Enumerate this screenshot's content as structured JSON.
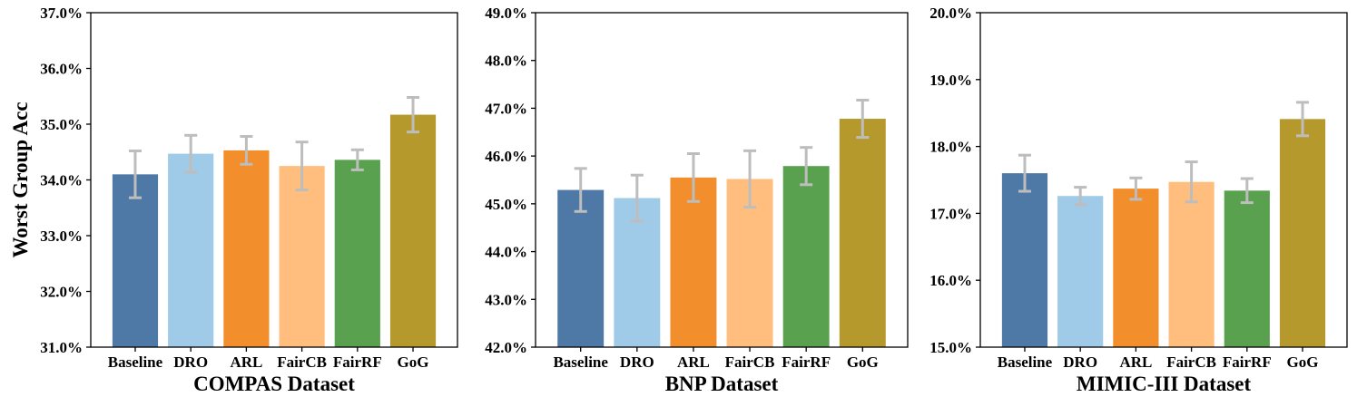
{
  "chart_data": [
    {
      "type": "bar",
      "title": "",
      "xlabel": "COMPAS Dataset",
      "ylabel": "Worst Group Acc",
      "ylim": [
        31.0,
        37.0
      ],
      "yticks": [
        31,
        32,
        33,
        34,
        35,
        36,
        37
      ],
      "ytick_labels": [
        "31.0%",
        "32.0%",
        "33.0%",
        "34.0%",
        "35.0%",
        "36.0%",
        "37.0%"
      ],
      "categories": [
        "Baseline",
        "DRO",
        "ARL",
        "FairCB",
        "FairRF",
        "GoG"
      ],
      "values": [
        34.1,
        34.47,
        34.53,
        34.25,
        34.36,
        35.17
      ],
      "errors": [
        0.42,
        0.33,
        0.25,
        0.43,
        0.18,
        0.31
      ]
    },
    {
      "type": "bar",
      "title": "",
      "xlabel": "BNP Dataset",
      "ylabel": "",
      "ylim": [
        42.0,
        49.0
      ],
      "yticks": [
        42,
        43,
        44,
        45,
        46,
        47,
        48,
        49
      ],
      "ytick_labels": [
        "42.0%",
        "43.0%",
        "44.0%",
        "45.0%",
        "46.0%",
        "47.0%",
        "48.0%",
        "49.0%"
      ],
      "categories": [
        "Baseline",
        "DRO",
        "ARL",
        "FairCB",
        "FairRF",
        "GoG"
      ],
      "values": [
        45.29,
        45.12,
        45.55,
        45.52,
        45.79,
        46.78
      ],
      "errors": [
        0.45,
        0.48,
        0.5,
        0.59,
        0.39,
        0.39
      ]
    },
    {
      "type": "bar",
      "title": "",
      "xlabel": "MIMIC-III Dataset",
      "ylabel": "",
      "ylim": [
        15.0,
        20.0
      ],
      "yticks": [
        15,
        16,
        17,
        18,
        19,
        20
      ],
      "ytick_labels": [
        "15.0%",
        "16.0%",
        "17.0%",
        "18.0%",
        "19.0%",
        "20.0%"
      ],
      "categories": [
        "Baseline",
        "DRO",
        "ARL",
        "FairCB",
        "FairRF",
        "GoG"
      ],
      "values": [
        17.6,
        17.26,
        17.37,
        17.47,
        17.34,
        18.41
      ],
      "errors": [
        0.27,
        0.13,
        0.16,
        0.3,
        0.18,
        0.25
      ]
    }
  ],
  "colors": [
    "#4e79a7",
    "#a0cbe8",
    "#f28e2b",
    "#ffbe7d",
    "#59a14f",
    "#b6992d"
  ],
  "error_color": "#bdbdbd"
}
